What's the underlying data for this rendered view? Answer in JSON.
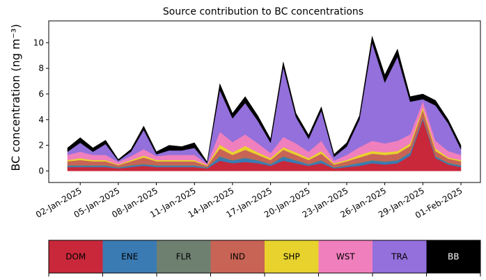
{
  "chart_data": {
    "type": "stacked_area",
    "title": "Source contribution to BC concentrations",
    "y_label": "BC concentration (ng m⁻³)",
    "x": [
      "01-Jan-2025",
      "02-Jan-2025",
      "03-Jan-2025",
      "04-Jan-2025",
      "05-Jan-2025",
      "06-Jan-2025",
      "07-Jan-2025",
      "08-Jan-2025",
      "09-Jan-2025",
      "10-Jan-2025",
      "11-Jan-2025",
      "12-Jan-2025",
      "13-Jan-2025",
      "14-Jan-2025",
      "15-Jan-2025",
      "16-Jan-2025",
      "17-Jan-2025",
      "18-Jan-2025",
      "19-Jan-2025",
      "20-Jan-2025",
      "21-Jan-2025",
      "22-Jan-2025",
      "23-Jan-2025",
      "24-Jan-2025",
      "25-Jan-2025",
      "26-Jan-2025",
      "27-Jan-2025",
      "28-Jan-2025",
      "29-Jan-2025",
      "30-Jan-2025",
      "31-Jan-2025",
      "01-Feb-2025"
    ],
    "xticks": [
      "02-Jan-2025",
      "05-Jan-2025",
      "08-Jan-2025",
      "11-Jan-2025",
      "14-Jan-2025",
      "17-Jan-2025",
      "20-Jan-2025",
      "23-Jan-2025",
      "26-Jan-2025",
      "29-Jan-2025",
      "01-Feb-2025"
    ],
    "ylim": [
      -0.9,
      11.7
    ],
    "yticks": [
      0,
      2,
      4,
      6,
      8,
      10
    ],
    "series": [
      {
        "name": "DOM",
        "color": "#c8283a",
        "values": [
          0.3,
          0.3,
          0.3,
          0.3,
          0.2,
          0.3,
          0.4,
          0.3,
          0.3,
          0.3,
          0.3,
          0.2,
          0.8,
          0.6,
          0.7,
          0.6,
          0.4,
          0.8,
          0.6,
          0.4,
          0.6,
          0.2,
          0.3,
          0.4,
          0.6,
          0.5,
          0.6,
          1.2,
          4.0,
          1.0,
          0.5,
          0.3
        ]
      },
      {
        "name": "ENE",
        "color": "#3a7bb4",
        "values": [
          0.1,
          0.1,
          0.1,
          0.1,
          0.05,
          0.1,
          0.1,
          0.1,
          0.1,
          0.1,
          0.1,
          0.05,
          0.3,
          0.2,
          0.3,
          0.2,
          0.1,
          0.3,
          0.2,
          0.1,
          0.2,
          0.05,
          0.1,
          0.2,
          0.2,
          0.2,
          0.2,
          0.2,
          0.1,
          0.1,
          0.1,
          0.1
        ]
      },
      {
        "name": "FLR",
        "color": "#6e8070",
        "values": [
          0.05,
          0.05,
          0.05,
          0.05,
          0.05,
          0.05,
          0.05,
          0.05,
          0.05,
          0.05,
          0.05,
          0.05,
          0.05,
          0.05,
          0.05,
          0.05,
          0.05,
          0.05,
          0.05,
          0.05,
          0.05,
          0.05,
          0.05,
          0.05,
          0.05,
          0.05,
          0.05,
          0.05,
          0.05,
          0.05,
          0.05,
          0.05
        ]
      },
      {
        "name": "IND",
        "color": "#c86455",
        "values": [
          0.3,
          0.4,
          0.3,
          0.3,
          0.15,
          0.3,
          0.5,
          0.3,
          0.3,
          0.3,
          0.3,
          0.1,
          0.6,
          0.4,
          0.6,
          0.4,
          0.3,
          0.5,
          0.4,
          0.3,
          0.5,
          0.2,
          0.3,
          0.4,
          0.5,
          0.5,
          0.5,
          0.5,
          0.6,
          0.4,
          0.3,
          0.3
        ]
      },
      {
        "name": "SHP",
        "color": "#e8d22e",
        "values": [
          0.1,
          0.15,
          0.1,
          0.1,
          0.05,
          0.1,
          0.15,
          0.1,
          0.1,
          0.1,
          0.1,
          0.05,
          0.3,
          0.2,
          0.3,
          0.2,
          0.15,
          0.2,
          0.2,
          0.15,
          0.2,
          0.1,
          0.1,
          0.2,
          0.2,
          0.2,
          0.2,
          0.2,
          0.2,
          0.2,
          0.1,
          0.1
        ]
      },
      {
        "name": "WST",
        "color": "#f07fbe",
        "values": [
          0.4,
          0.5,
          0.4,
          0.4,
          0.2,
          0.3,
          0.5,
          0.3,
          0.4,
          0.4,
          0.4,
          0.1,
          1.0,
          0.8,
          0.9,
          0.7,
          0.4,
          0.8,
          0.7,
          0.5,
          0.8,
          0.2,
          0.4,
          0.6,
          0.8,
          0.7,
          0.8,
          0.7,
          0.5,
          0.6,
          0.5,
          0.4
        ]
      },
      {
        "name": "TRA",
        "color": "#9370db",
        "values": [
          0.25,
          0.7,
          0.25,
          0.85,
          0.1,
          0.35,
          1.5,
          0.15,
          0.35,
          0.35,
          0.55,
          0.05,
          3.25,
          1.85,
          2.45,
          1.75,
          0.8,
          5.45,
          2.05,
          1.0,
          2.35,
          0.3,
          0.65,
          2.15,
          7.65,
          4.75,
          6.55,
          2.55,
          0.15,
          2.75,
          2.15,
          0.45
        ]
      },
      {
        "name": "BB",
        "color": "#000000",
        "values": [
          0.3,
          0.4,
          0.3,
          0.3,
          0.1,
          0.2,
          0.3,
          0.2,
          0.4,
          0.3,
          0.4,
          0.1,
          0.5,
          0.4,
          0.5,
          0.4,
          0.3,
          0.4,
          0.3,
          0.3,
          0.3,
          0.2,
          0.3,
          0.3,
          0.5,
          0.6,
          0.6,
          0.4,
          0.4,
          0.4,
          0.3,
          0.3
        ]
      }
    ]
  }
}
